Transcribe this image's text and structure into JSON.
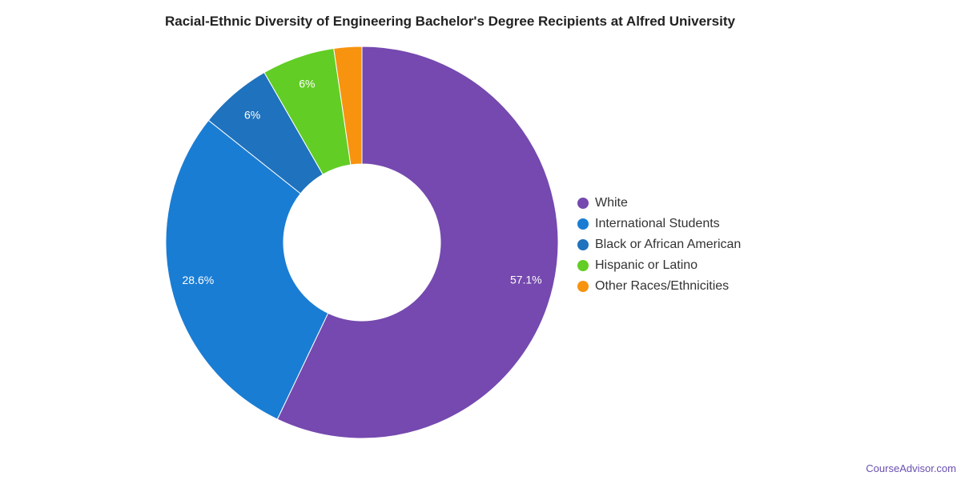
{
  "chart_data": {
    "type": "pie",
    "title": "Racial-Ethnic Diversity of Engineering Bachelor's Degree Recipients at Alfred University",
    "donut": true,
    "legend_position": "right",
    "slices": [
      {
        "name": "White",
        "value": 57.1,
        "label": "57.1%",
        "color": "#7549af"
      },
      {
        "name": "International Students",
        "value": 28.6,
        "label": "28.6%",
        "color": "#1a7dd4"
      },
      {
        "name": "Black or African American",
        "value": 6,
        "label": "6%",
        "color": "#1f72bd"
      },
      {
        "name": "Hispanic or Latino",
        "value": 6,
        "label": "6%",
        "color": "#62cd25"
      },
      {
        "name": "Other Races/Ethnicities",
        "value": 2.3,
        "label": "",
        "color": "#f7930f"
      }
    ]
  },
  "watermark": "CourseAdvisor.com"
}
